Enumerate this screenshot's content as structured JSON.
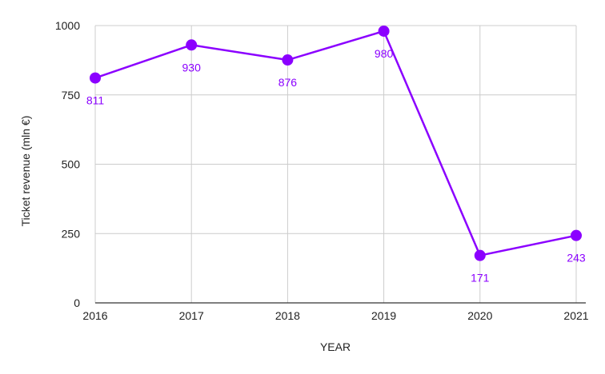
{
  "chart_data": {
    "type": "line",
    "title": "",
    "xlabel": "YEAR",
    "ylabel": "Ticket revenue (mln €)",
    "categories": [
      "2016",
      "2017",
      "2018",
      "2019",
      "2020",
      "2021"
    ],
    "series": [
      {
        "values": [
          811,
          930,
          876,
          980,
          171,
          243
        ]
      }
    ],
    "ylim": [
      0,
      1000
    ],
    "yticks": [
      "0",
      "250",
      "500",
      "750",
      "1000"
    ],
    "grid": true,
    "legend": "none",
    "colors": {
      "series": "#8b00ff",
      "grid": "#cccccc",
      "axis": "#333333"
    }
  }
}
